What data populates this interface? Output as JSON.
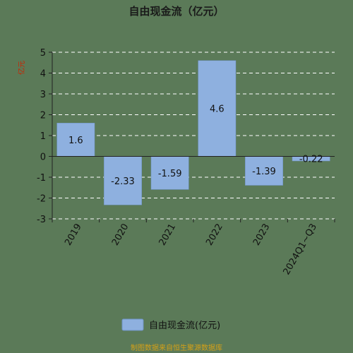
{
  "chart_data": {
    "type": "bar",
    "title": "自由现金流（亿元）",
    "ylabel": "亿元",
    "categories": [
      "2019",
      "2020",
      "2021",
      "2022",
      "2023",
      "2024Q1~Q3"
    ],
    "series": [
      {
        "name": "自由现金流(亿元)",
        "values": [
          1.6,
          -2.33,
          -1.59,
          4.6,
          -1.39,
          -0.22
        ]
      }
    ],
    "value_labels": [
      "1.6",
      "-2.33",
      "-1.59",
      "4.6",
      "-1.39",
      "-0.22"
    ],
    "ylim": [
      -3,
      5
    ],
    "yticks": [
      5,
      4,
      3,
      2,
      1,
      0,
      -1,
      -2,
      -3
    ],
    "grid": true,
    "legend_position": "bottom-center",
    "source": "制图数据来自恒生聚源数据库",
    "colors": {
      "bar": "#8eb0df",
      "bar_stroke": "#6f93c4",
      "grid": "#ffffff",
      "axis": "#222222"
    }
  }
}
